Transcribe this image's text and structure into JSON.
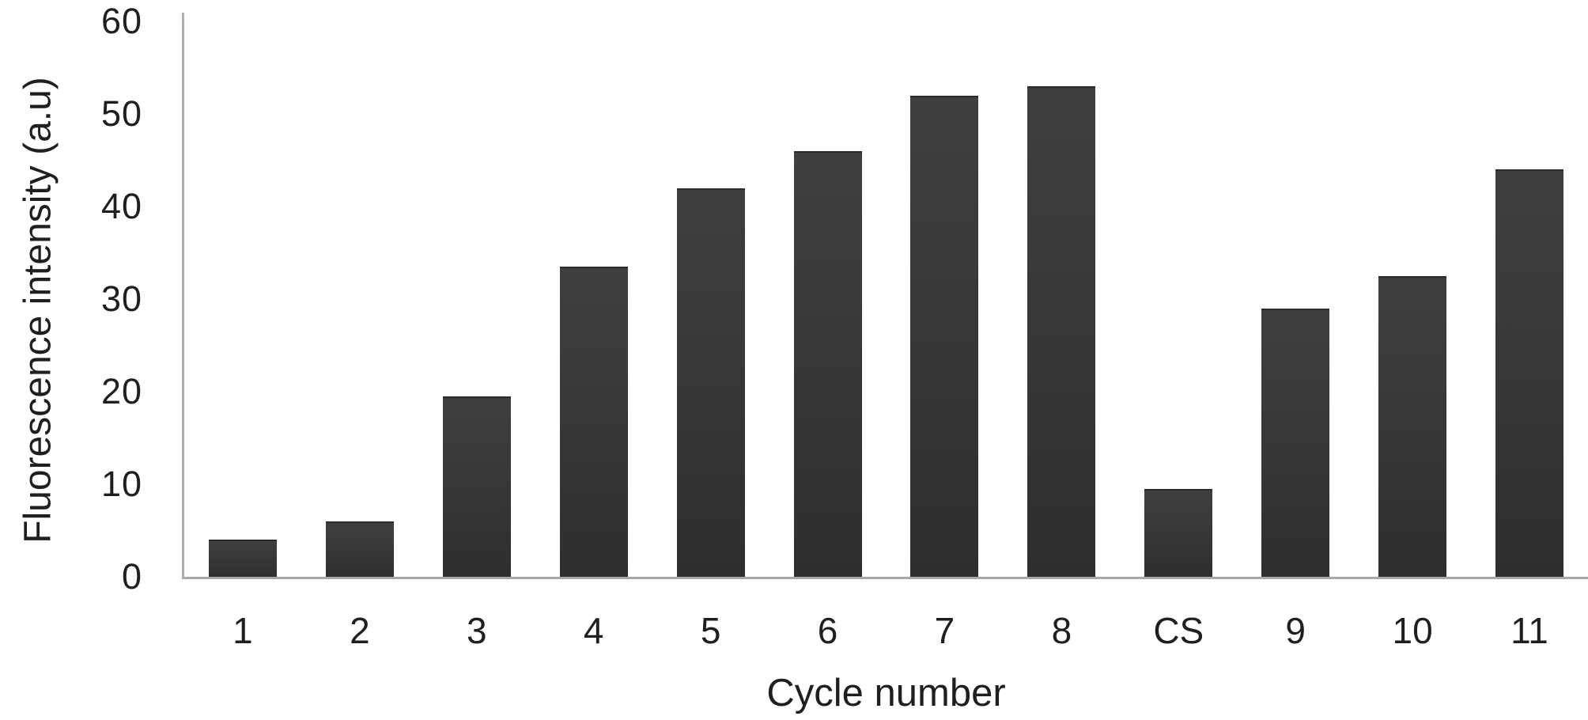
{
  "chart_data": {
    "type": "bar",
    "title": "",
    "categories": [
      "1",
      "2",
      "3",
      "4",
      "5",
      "6",
      "7",
      "8",
      "CS",
      "9",
      "10",
      "11"
    ],
    "values": [
      4,
      6,
      19.5,
      33.5,
      42,
      46,
      52,
      53,
      9.5,
      29,
      32.5,
      44
    ],
    "xlabel": "Cycle number",
    "ylabel": "Fluorescence intensity (a.u)",
    "ylim": [
      0,
      60
    ],
    "yticks": [
      0,
      10,
      20,
      30,
      40,
      50,
      60
    ],
    "grid": false,
    "legend_position": "none",
    "bar_color": "#383838",
    "axis_color": "#a8a8a8",
    "text_color": "#1f1f1f",
    "background_color": "#ffffff"
  }
}
